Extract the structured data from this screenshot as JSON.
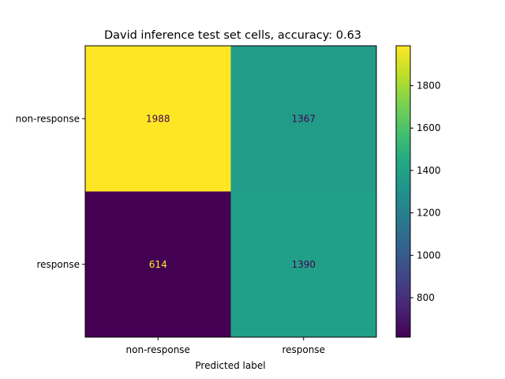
{
  "chart_data": {
    "type": "heatmap",
    "title": "David inference test set cells, accuracy: 0.63",
    "xlabel": "Predicted label",
    "ylabel": "",
    "x_categories": [
      "non-response",
      "response"
    ],
    "y_categories": [
      "non-response",
      "response"
    ],
    "values": [
      [
        1988,
        1367
      ],
      [
        614,
        1390
      ]
    ],
    "colormap": "viridis",
    "colorbar": {
      "min": 614,
      "max": 1988,
      "ticks": [
        800,
        1000,
        1200,
        1400,
        1600,
        1800
      ],
      "tick_labels": [
        "800",
        "1000",
        "1200",
        "1400",
        "1600",
        "1800"
      ]
    },
    "cell_label_colors": {
      "dark": "#440154",
      "light": "#fde725"
    }
  }
}
